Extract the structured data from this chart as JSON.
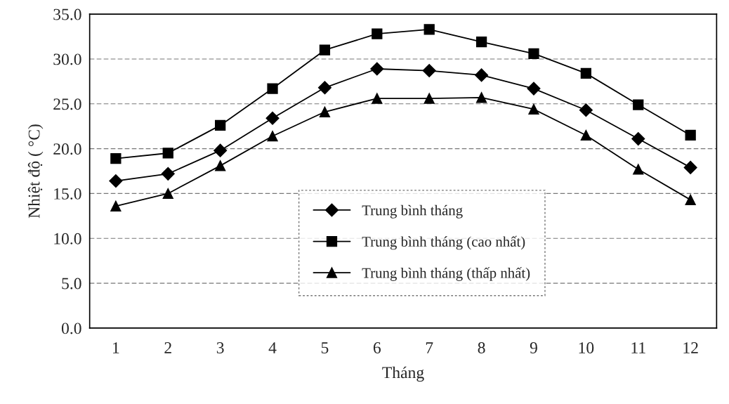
{
  "chart_data": {
    "type": "line",
    "xlabel": "Tháng",
    "ylabel": "Nhiệt độ ( °C)",
    "categories": [
      "1",
      "2",
      "3",
      "4",
      "5",
      "6",
      "7",
      "8",
      "9",
      "10",
      "11",
      "12"
    ],
    "series": [
      {
        "name": "Trung bình tháng",
        "color": "#000000",
        "marker": "diamond",
        "values": [
          16.4,
          17.2,
          19.8,
          23.4,
          26.8,
          28.9,
          28.7,
          28.2,
          26.7,
          24.3,
          21.1,
          17.9
        ]
      },
      {
        "name": "Trung bình tháng (cao nhất)",
        "color": "#000000",
        "marker": "square",
        "values": [
          18.9,
          19.5,
          22.6,
          26.7,
          31.0,
          32.8,
          33.3,
          31.9,
          30.6,
          28.4,
          24.9,
          21.5
        ]
      },
      {
        "name": "Trung bình tháng (thấp nhất)",
        "color": "#000000",
        "marker": "triangle",
        "values": [
          13.6,
          15.0,
          18.1,
          21.4,
          24.1,
          25.6,
          25.6,
          25.7,
          24.4,
          21.5,
          17.7,
          14.3
        ]
      }
    ],
    "ylim": [
      0,
      35
    ],
    "yticks": [
      {
        "value": 0,
        "label": "0.0"
      },
      {
        "value": 5,
        "label": "5.0"
      },
      {
        "value": 10,
        "label": "10.0"
      },
      {
        "value": 15,
        "label": "15.0"
      },
      {
        "value": 20,
        "label": "20.0"
      },
      {
        "value": 25,
        "label": "25.0"
      },
      {
        "value": 30,
        "label": "30.0"
      },
      {
        "value": 35,
        "label": "35.0"
      }
    ],
    "grid": "y",
    "legend": "bottom",
    "line_style": "solid"
  }
}
